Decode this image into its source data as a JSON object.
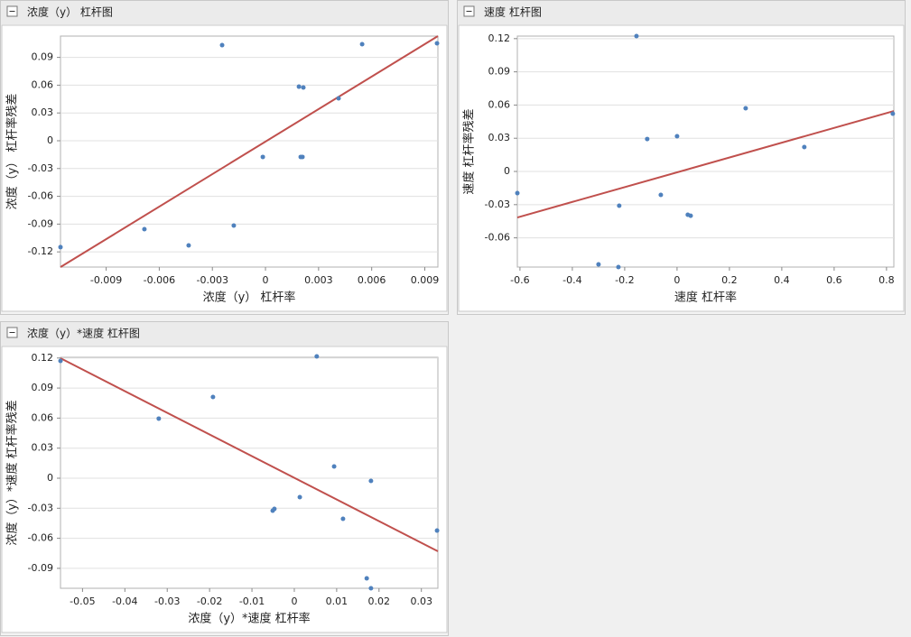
{
  "chart_data": [
    {
      "type": "scatter",
      "title": "浓度（y） 杠杆图",
      "xlabel": "浓度（y） 杠杆率",
      "ylabel": "浓度（y） 杠杆率残差",
      "color": "#4f81bd",
      "grid": true,
      "x": [
        -0.01158,
        -0.00684,
        -0.00434,
        -0.00245,
        -0.00179,
        -0.00015,
        0.00189,
        0.00214,
        0.00199,
        0.00209,
        0.00413,
        0.00546,
        0.00969
      ],
      "y": [
        -0.1149,
        -0.0955,
        -0.113,
        0.1032,
        -0.0916,
        -0.0175,
        0.0584,
        0.0575,
        -0.0175,
        -0.0175,
        0.0458,
        0.1042,
        0.1052
      ],
      "fit_line": {
        "color": "#c0504d",
        "x": [
          -0.01158,
          0.00974
        ],
        "y": [
          -0.1364,
          0.113
        ]
      },
      "xlim": [
        -0.01158,
        0.00974
      ],
      "ylim": [
        -0.1364,
        0.113
      ],
      "xticks": [
        -0.009,
        -0.006,
        -0.003,
        0,
        0.003,
        0.006,
        0.009
      ],
      "yticks": [
        -0.12,
        -0.09,
        -0.06,
        -0.03,
        0,
        0.03,
        0.06,
        0.09
      ]
    },
    {
      "type": "scatter",
      "title": "速度 杠杆图",
      "xlabel": "速度 杠杆率",
      "ylabel": "速度 杠杆率残差",
      "color": "#4f81bd",
      "grid": true,
      "x": [
        -0.61,
        -0.3,
        -0.224,
        -0.221,
        -0.155,
        -0.114,
        -0.062,
        0,
        0.041,
        0.052,
        0.262,
        0.486,
        0.824
      ],
      "y": [
        -0.0196,
        -0.084,
        -0.0864,
        -0.031,
        0.1223,
        0.0293,
        -0.0212,
        0.0318,
        -0.0391,
        -0.04,
        0.0571,
        0.022,
        0.0522
      ],
      "fit_line": {
        "color": "#c0504d",
        "x": [
          -0.61,
          0.828
        ],
        "y": [
          -0.0416,
          0.0546
        ]
      },
      "xlim": [
        -0.61,
        0.828
      ],
      "ylim": [
        -0.0864,
        0.1223
      ],
      "xticks": [
        -0.6,
        -0.4,
        -0.2,
        0,
        0.2,
        0.4,
        0.6,
        0.8
      ],
      "yticks": [
        -0.06,
        -0.03,
        0,
        0.03,
        0.06,
        0.09,
        0.12
      ]
    },
    {
      "type": "scatter",
      "title": "浓度（y）*速度 杠杆图",
      "xlabel": "浓度（y）*速度 杠杆率",
      "ylabel": "浓度（y）*速度 杠杆率残差",
      "color": "#4f81bd",
      "grid": true,
      "x": [
        -0.0552,
        -0.032,
        -0.0192,
        -0.0051,
        -0.0047,
        0.0013,
        0.0053,
        0.0094,
        0.0115,
        0.0171,
        0.0181,
        0.0181,
        0.0337
      ],
      "y": [
        0.1171,
        0.0595,
        0.0811,
        -0.0324,
        -0.0306,
        -0.0189,
        0.1216,
        0.0117,
        -0.0405,
        -0.1,
        -0.0027,
        -0.1099,
        -0.0523
      ],
      "fit_line": {
        "color": "#c0504d",
        "x": [
          -0.0552,
          0.0339
        ],
        "y": [
          0.1198,
          -0.073
        ]
      },
      "xlim": [
        -0.0552,
        0.0339
      ],
      "ylim": [
        -0.1099,
        0.1207
      ],
      "xticks": [
        -0.05,
        -0.04,
        -0.03,
        -0.02,
        -0.01,
        0,
        0.01,
        0.02,
        0.03
      ],
      "yticks": [
        -0.09,
        -0.06,
        -0.03,
        0,
        0.03,
        0.06,
        0.09,
        0.12
      ]
    }
  ]
}
